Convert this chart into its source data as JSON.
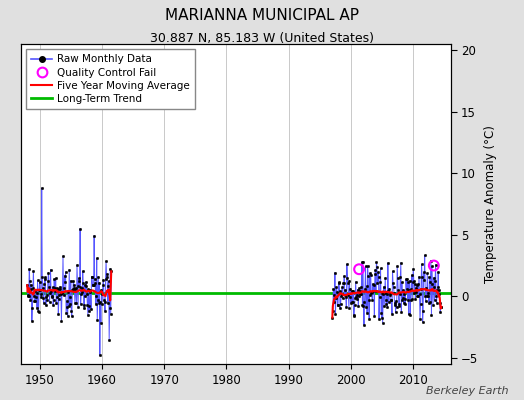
{
  "title": "MARIANNA MUNICIPAL AP",
  "subtitle": "30.887 N, 85.183 W (United States)",
  "ylabel": "Temperature Anomaly (°C)",
  "watermark": "Berkeley Earth",
  "xlim": [
    1947,
    2016
  ],
  "ylim": [
    -5.5,
    20.5
  ],
  "yticks": [
    -5,
    0,
    5,
    10,
    15,
    20
  ],
  "xticks": [
    1950,
    1960,
    1970,
    1980,
    1990,
    2000,
    2010
  ],
  "bg_color": "#e0e0e0",
  "plot_bg_color": "#ffffff",
  "grid_color": "#c0c0c0",
  "raw_color": "#5555ff",
  "ma_color": "#ff0000",
  "trend_color": "#00bb00",
  "qc_color": "#ff00ff",
  "segment1_start": 1948.0,
  "segment1_end": 1961.5,
  "segment2_start": 1997.0,
  "segment2_end": 2014.5,
  "qc_times": [
    2001.3,
    2013.3
  ],
  "qc_vals": [
    2.2,
    2.5
  ],
  "spike1_time": 1950.3,
  "spike1_val": 8.8,
  "spike2_time": 1956.5,
  "spike2_val": 5.5,
  "neg_spike_time": 1959.7,
  "neg_spike_val": -4.8,
  "seed": 42,
  "title_fontsize": 11,
  "subtitle_fontsize": 9,
  "tick_fontsize": 8.5,
  "ylabel_fontsize": 8.5,
  "legend_fontsize": 7.5,
  "watermark_fontsize": 8
}
